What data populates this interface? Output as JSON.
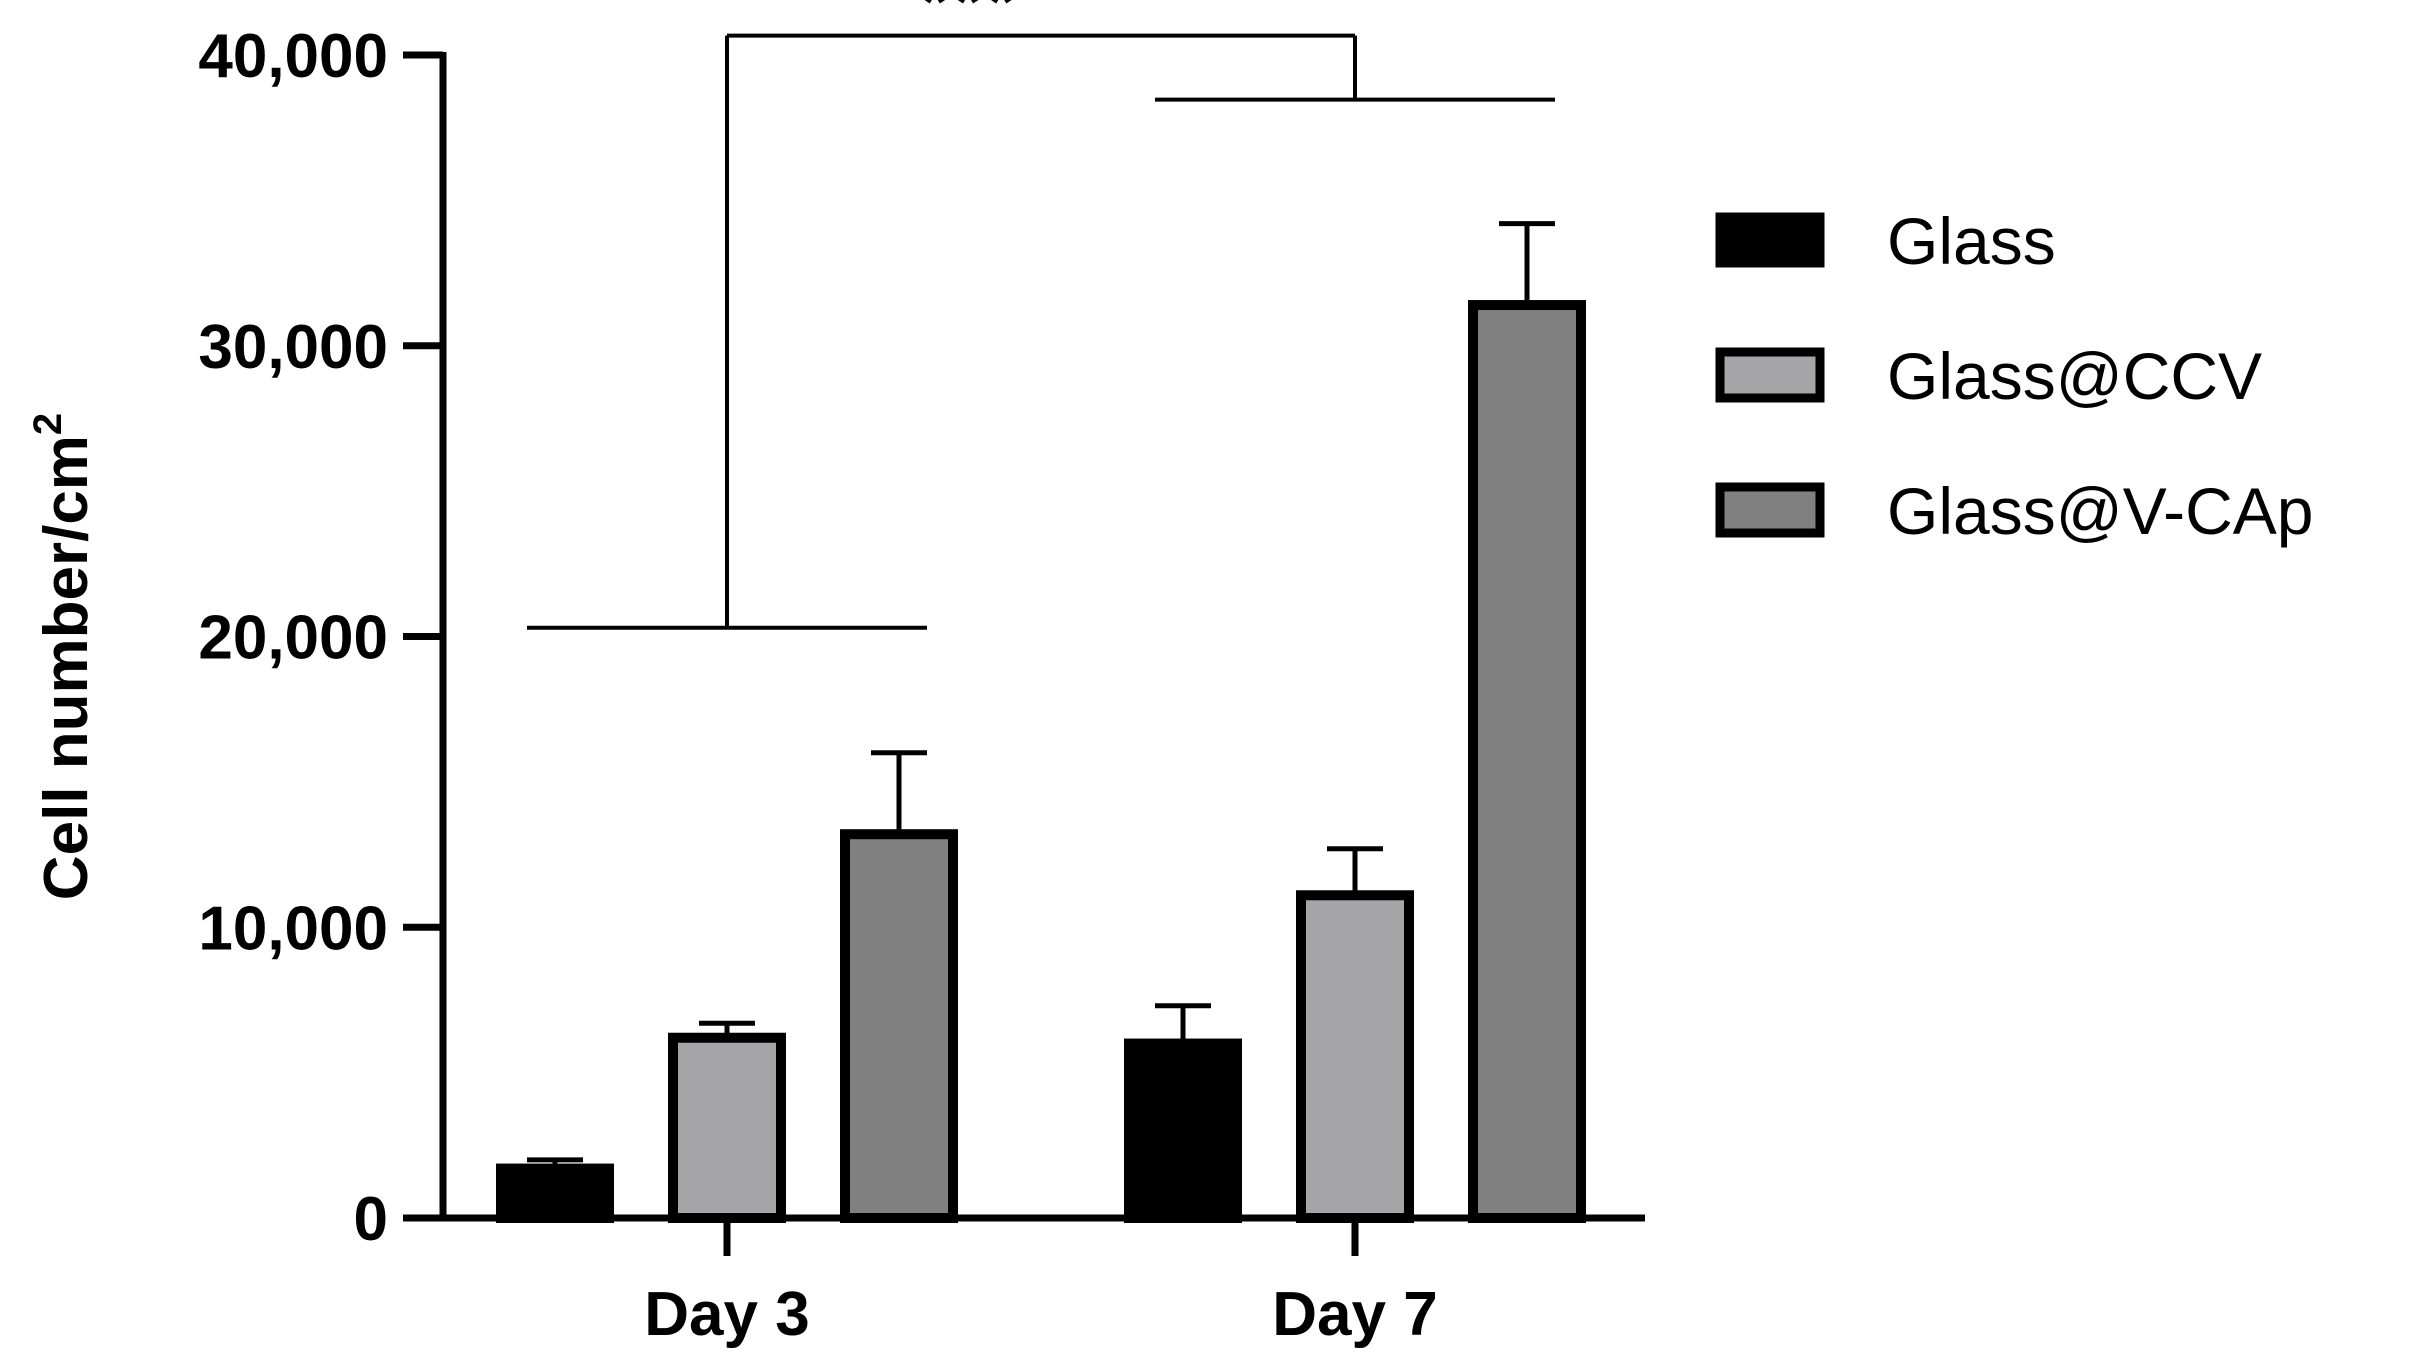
{
  "chart_data": {
    "type": "bar",
    "title": "",
    "xlabel": "",
    "ylabel": "Cell number/cm",
    "ylabel_superscript": "2",
    "ylim": [
      0,
      40000
    ],
    "yticks": [
      {
        "value": 0,
        "label": "0"
      },
      {
        "value": 10000,
        "label": "10,000"
      },
      {
        "value": 20000,
        "label": "20,000"
      },
      {
        "value": 30000,
        "label": "30,000"
      },
      {
        "value": 40000,
        "label": "40,000"
      }
    ],
    "categories": [
      "Day 3",
      "Day 7"
    ],
    "series": [
      {
        "name": "Glass",
        "color": "#000000",
        "values": [
          1700,
          6000
        ],
        "errors": [
          300,
          1300
        ]
      },
      {
        "name": "Glass@CCV",
        "color": "#a5a5a8",
        "values": [
          6200,
          11100
        ],
        "errors": [
          500,
          1600
        ]
      },
      {
        "name": "Glass@V-CAp",
        "color": "#808080",
        "values": [
          13200,
          31400
        ],
        "errors": [
          2800,
          2800
        ]
      }
    ],
    "grid": false,
    "legend": "right",
    "annotations": [
      {
        "text": "***",
        "type": "significance",
        "between": [
          "Day 3",
          "Day 7"
        ]
      }
    ]
  }
}
